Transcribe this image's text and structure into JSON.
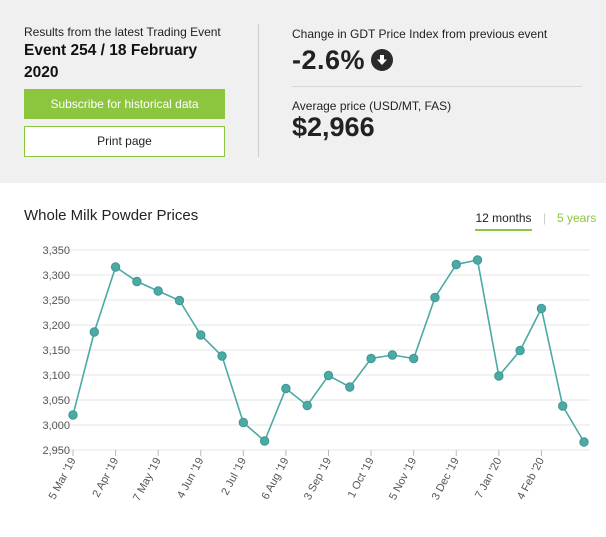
{
  "summary": {
    "event_caption": "Results from the latest Trading Event",
    "event_title": "Event 254 / 18 February 2020",
    "subscribe_label": "Subscribe for historical data",
    "print_label": "Print page",
    "change_caption": "Change in GDT Price Index from previous event",
    "change_value": "-2.6%",
    "change_icon": "arrow-down-circle-icon",
    "avg_caption": "Average price (USD/MT, FAS)",
    "avg_value": "$2,966"
  },
  "tabs": {
    "active": "12 months",
    "separator": "|",
    "other": "5 years"
  },
  "colors": {
    "accent_green": "#8cc63f",
    "line": "#4ca9a4",
    "panel_bg": "#f0f0f0"
  },
  "chart_data": {
    "type": "line",
    "title": "Whole Milk Powder Prices",
    "xlabel": "",
    "ylabel": "",
    "ylim": [
      2950,
      3350
    ],
    "yticks": [
      "3,350",
      "3,300",
      "3,250",
      "3,200",
      "3,150",
      "3,100",
      "3,050",
      "3,000",
      "2,950"
    ],
    "ytick_values": [
      3350,
      3300,
      3250,
      3200,
      3150,
      3100,
      3050,
      3000,
      2950
    ],
    "grid": "horizontal",
    "xtick_labels": [
      "5 Mar '19",
      "2 Apr '19",
      "7 May '19",
      "4 Jun '19",
      "2 Jul '19",
      "6 Aug '19",
      "3 Sep '19",
      "1 Oct '19",
      "5 Nov '19",
      "3 Dec '19",
      "7 Jan '20",
      "4 Feb '20"
    ],
    "xtick_index": [
      0,
      2,
      4,
      6,
      8,
      10,
      12,
      14,
      16,
      18,
      20,
      22
    ],
    "series": [
      {
        "values": [
          3020,
          3186,
          3316,
          3287,
          3268,
          3249,
          3180,
          3138,
          3005,
          2968,
          3073,
          3039,
          3099,
          3076,
          3133,
          3140,
          3133,
          3255,
          3321,
          3330,
          3098,
          3149,
          3233,
          3038,
          2966
        ]
      }
    ]
  }
}
